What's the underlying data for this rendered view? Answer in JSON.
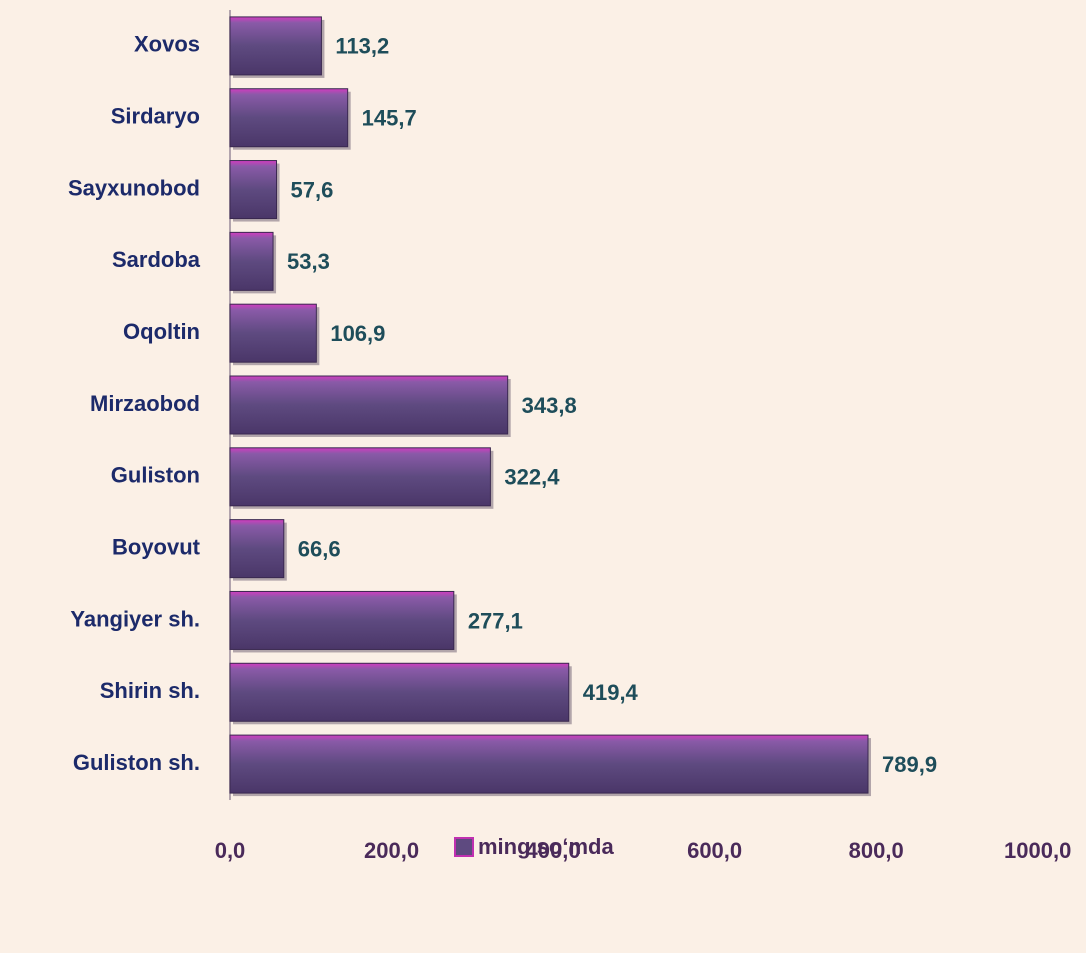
{
  "chart_data": {
    "type": "bar",
    "orientation": "horizontal",
    "categories": [
      "Xovos",
      "Sirdaryo",
      "Sayxunobod",
      "Sardoba",
      "Oqoltin",
      "Mirzaobod",
      "Guliston",
      "Boyovut",
      "Yangiyer sh.",
      "Shirin sh.",
      "Guliston sh."
    ],
    "series": [
      {
        "name": "ming so‘mda",
        "color": "#5e4a80",
        "values": [
          113.2,
          145.7,
          57.6,
          53.3,
          106.9,
          343.8,
          322.4,
          66.6,
          277.1,
          419.4,
          789.9
        ],
        "value_labels": [
          "113,2",
          "145,7",
          "57,6",
          "53,3",
          "106,9",
          "343,8",
          "322,4",
          "66,6",
          "277,1",
          "419,4",
          "789,9"
        ]
      }
    ],
    "xlim": [
      0,
      1000
    ],
    "xticks": [
      {
        "value": 0,
        "label": "0,0"
      },
      {
        "value": 200,
        "label": "200,0"
      },
      {
        "value": 400,
        "label": "400,0"
      },
      {
        "value": 600,
        "label": "600,0"
      },
      {
        "value": 800,
        "label": "800,0"
      },
      {
        "value": 1000,
        "label": "1000,0"
      }
    ],
    "legend": "bottom"
  }
}
